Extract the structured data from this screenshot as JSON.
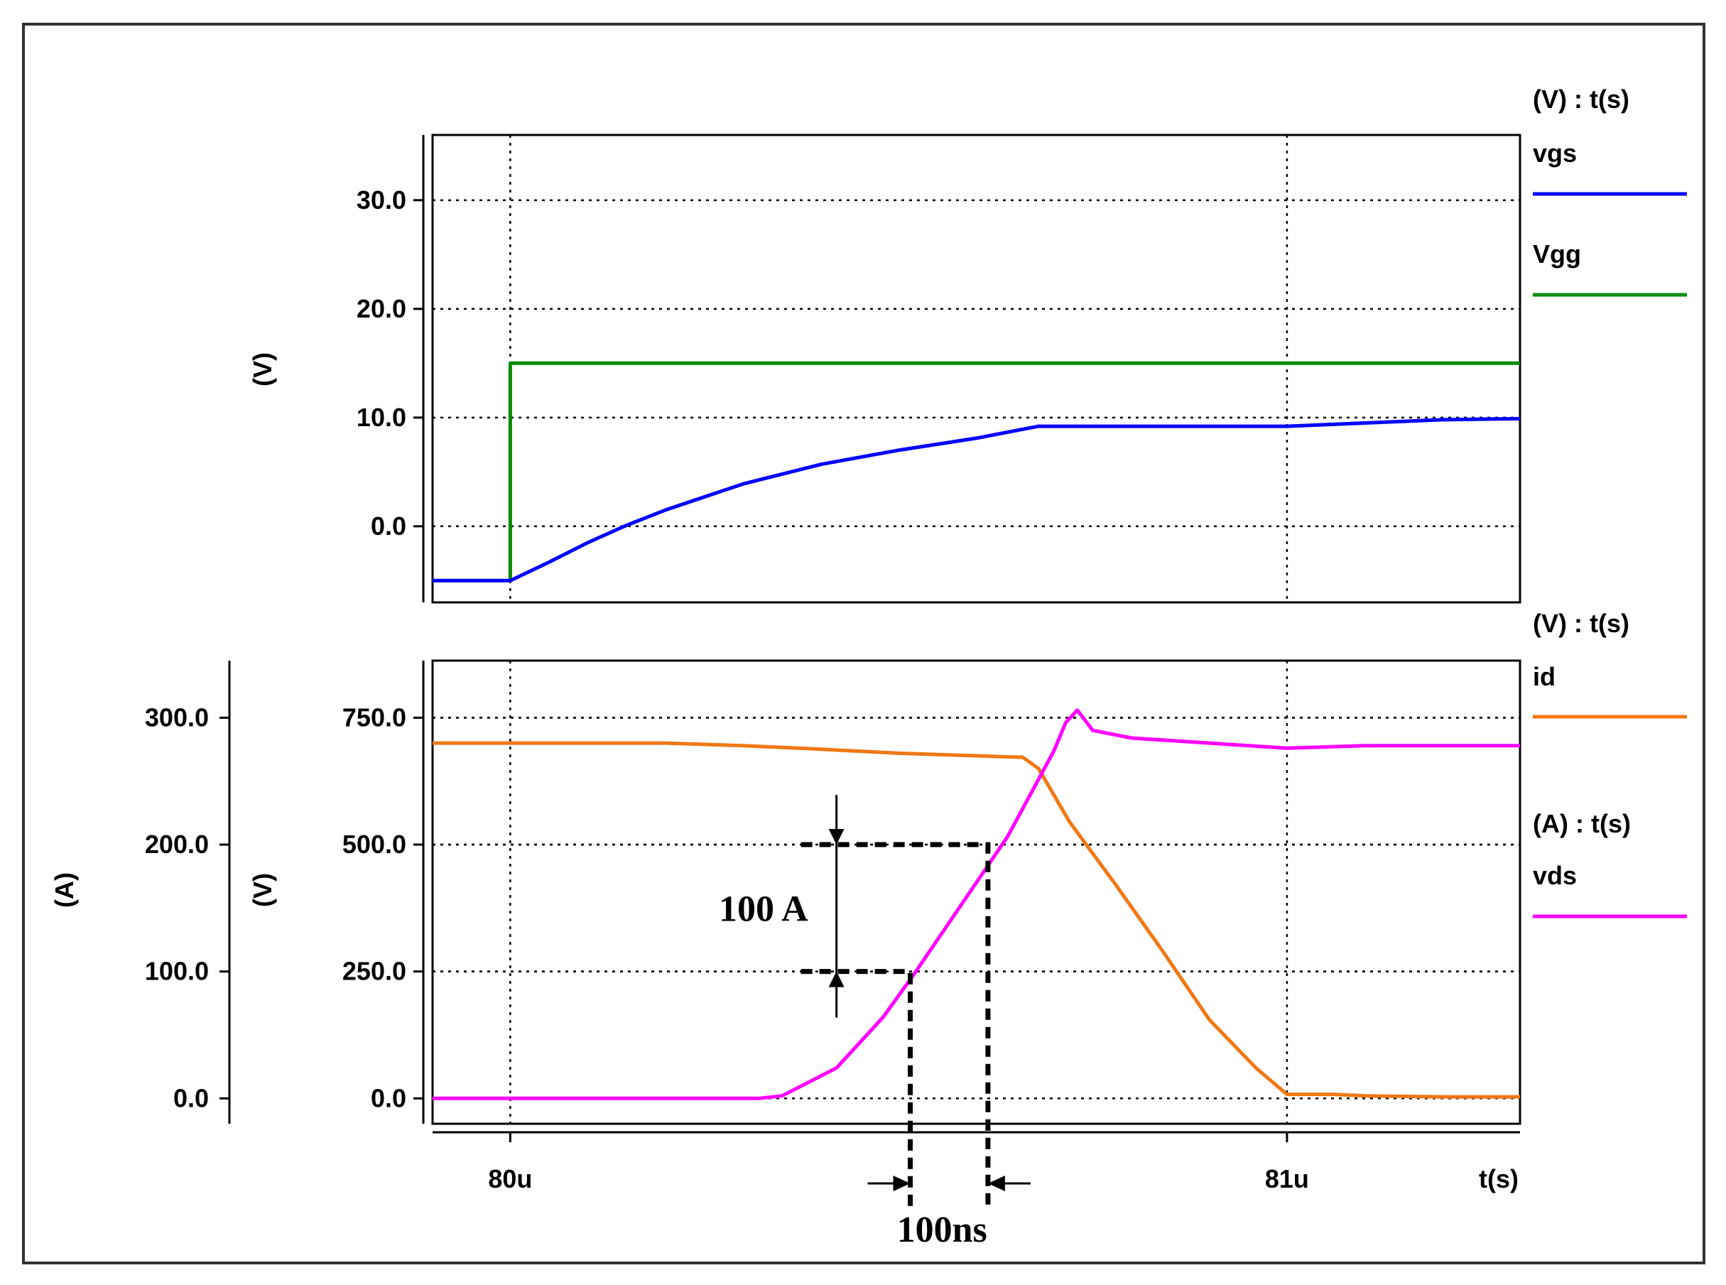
{
  "colors": {
    "vgs": "#0000ff",
    "vgg": "#008c00",
    "id": "#f07814",
    "vds": "#ff00ff",
    "grid": "#000000",
    "frame": "#000000"
  },
  "chart_data": [
    {
      "type": "line",
      "panel": "top",
      "ylabel": "(V)",
      "ylim": [
        -7.0,
        36.0
      ],
      "yticks": [
        0.0,
        10.0,
        20.0,
        30.0
      ],
      "ytick_labels": [
        "0.0",
        "10.0",
        "20.0",
        "30.0"
      ],
      "xlim": [
        79.9,
        81.3
      ],
      "xticks": [
        80.0,
        81.0
      ],
      "grid": true,
      "legend_position": "right",
      "legend_header": "(V) : t(s)",
      "series": [
        {
          "name": "vgs",
          "color": "#0000ff",
          "x": [
            79.9,
            80.0,
            80.05,
            80.1,
            80.15,
            80.2,
            80.3,
            80.4,
            80.5,
            80.6,
            80.68,
            80.8,
            80.9,
            81.0,
            81.1,
            81.2,
            81.3
          ],
          "y": [
            -5.0,
            -5.0,
            -3.3,
            -1.5,
            0.1,
            1.5,
            3.9,
            5.7,
            7.0,
            8.1,
            9.2,
            9.2,
            9.2,
            9.2,
            9.5,
            9.8,
            9.9
          ]
        },
        {
          "name": "Vgg",
          "color": "#008c00",
          "x": [
            79.9,
            80.0,
            80.0,
            81.3
          ],
          "y": [
            -5.0,
            -5.0,
            15.0,
            15.0
          ]
        }
      ]
    },
    {
      "type": "line",
      "panel": "bottom",
      "ylabel_left": "(A)",
      "ylabel_right": "(V)",
      "ylim_left": [
        -20,
        345
      ],
      "ylim_right": [
        -50,
        862.5
      ],
      "yticks_left": [
        0.0,
        100.0,
        200.0,
        300.0
      ],
      "ytick_labels_left": [
        "0.0",
        "100.0",
        "200.0",
        "300.0"
      ],
      "yticks_right": [
        0.0,
        250.0,
        500.0,
        750.0
      ],
      "ytick_labels_right": [
        "0.0",
        "250.0",
        "500.0",
        "750.0"
      ],
      "xlim": [
        79.9,
        81.3
      ],
      "xticks": [
        80.0,
        81.0
      ],
      "xtick_labels": [
        "80u",
        "81u"
      ],
      "xlabel": "t(s)",
      "grid": true,
      "legend_position": "right",
      "legend_headers": [
        "(V) : t(s)",
        "(A) : t(s)"
      ],
      "series": [
        {
          "name": "id",
          "color": "#f07814",
          "axis": "right",
          "x": [
            79.9,
            80.0,
            80.2,
            80.3,
            80.4,
            80.5,
            80.6,
            80.66,
            80.68,
            80.72,
            80.78,
            80.84,
            80.9,
            80.96,
            81.0,
            81.06,
            81.1,
            81.2,
            81.3
          ],
          "y": [
            700,
            700,
            700,
            695,
            688,
            680,
            675,
            672,
            650,
            545,
            420,
            290,
            155,
            60,
            8,
            8,
            5,
            3,
            3
          ]
        },
        {
          "name": "vds",
          "color": "#ff00ff",
          "axis": "right",
          "x": [
            79.9,
            80.0,
            80.2,
            80.32,
            80.35,
            80.42,
            80.48,
            80.52,
            80.56,
            80.6,
            80.64,
            80.67,
            80.7,
            80.715,
            80.73,
            80.75,
            80.8,
            80.9,
            81.0,
            81.1,
            81.2,
            81.3
          ],
          "y": [
            0,
            0,
            0,
            0,
            5,
            60,
            160,
            245,
            335,
            425,
            515,
            600,
            685,
            740,
            765,
            725,
            710,
            700,
            690,
            695,
            695,
            695
          ]
        }
      ],
      "annotations": [
        {
          "text": "100 A",
          "type": "vertical-dimension",
          "x": 80.42,
          "from": 100.0,
          "to": 200.0
        },
        {
          "text": "100ns",
          "type": "horizontal-dimension",
          "from": 80.515,
          "to": 80.615
        }
      ]
    }
  ]
}
